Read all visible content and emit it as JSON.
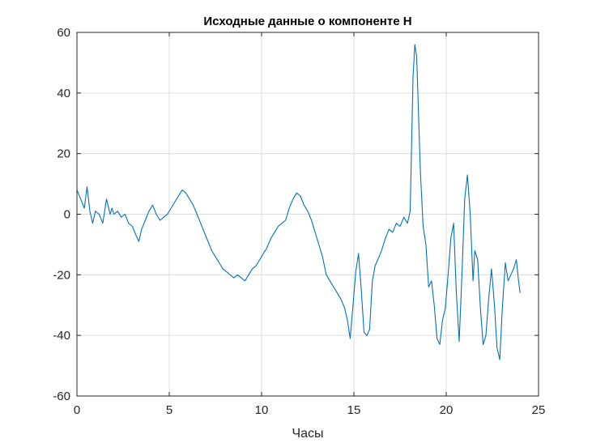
{
  "chart_data": {
    "type": "line",
    "title": "Исходные данные о компоненте H",
    "xlabel": "Часы",
    "ylabel": "",
    "xlim": [
      0,
      25
    ],
    "ylim": [
      -60,
      60
    ],
    "xticks": [
      0,
      5,
      10,
      15,
      20,
      25
    ],
    "yticks": [
      -60,
      -40,
      -20,
      0,
      20,
      40,
      60
    ],
    "xtick_labels": [
      "0",
      "5",
      "10",
      "15",
      "20",
      "25"
    ],
    "ytick_labels": [
      "-60",
      "-40",
      "-20",
      "0",
      "20",
      "40",
      "60"
    ],
    "grid": true,
    "line_color": "#0072BD",
    "series": [
      {
        "x": [
          0,
          0.2,
          0.4,
          0.55,
          0.7,
          0.85,
          1.0,
          1.2,
          1.4,
          1.6,
          1.8,
          1.9,
          2.0,
          2.2,
          2.4,
          2.6,
          2.8,
          3.0,
          3.2,
          3.35,
          3.5,
          3.7,
          3.9,
          4.1,
          4.3,
          4.5,
          4.7,
          4.9,
          5.1,
          5.3,
          5.5,
          5.7,
          5.9,
          6.1,
          6.3,
          6.5,
          6.7,
          6.9,
          7.1,
          7.3,
          7.5,
          7.7,
          7.9,
          8.1,
          8.3,
          8.5,
          8.7,
          8.9,
          9.1,
          9.3,
          9.5,
          9.7,
          9.9,
          10.1,
          10.3,
          10.5,
          10.7,
          10.9,
          11.1,
          11.3,
          11.5,
          11.7,
          11.9,
          12.1,
          12.3,
          12.5,
          12.7,
          12.9,
          13.1,
          13.3,
          13.5,
          13.7,
          13.9,
          14.1,
          14.3,
          14.5,
          14.65,
          14.8,
          14.95,
          15.1,
          15.25,
          15.4,
          15.55,
          15.7,
          15.85,
          16.0,
          16.15,
          16.3,
          16.5,
          16.7,
          16.9,
          17.1,
          17.3,
          17.5,
          17.7,
          17.9,
          18.05,
          18.2,
          18.3,
          18.4,
          18.5,
          18.6,
          18.75,
          18.9,
          19.05,
          19.2,
          19.35,
          19.5,
          19.65,
          19.8,
          19.95,
          20.1,
          20.25,
          20.4,
          20.55,
          20.7,
          20.85,
          21.0,
          21.15,
          21.3,
          21.45,
          21.55,
          21.7,
          21.85,
          22.0,
          22.15,
          22.3,
          22.45,
          22.6,
          22.75,
          22.9,
          23.05,
          23.2,
          23.35,
          23.5,
          23.65,
          23.8,
          23.9,
          24.0
        ],
        "y": [
          8,
          5,
          2,
          9,
          1,
          -3,
          1,
          0,
          -3,
          5,
          0,
          2,
          0,
          1,
          -1,
          0,
          -3,
          -4,
          -7,
          -9,
          -5,
          -2,
          1,
          3,
          0,
          -2,
          -1,
          0,
          2,
          4,
          6,
          8,
          7,
          5,
          3,
          0,
          -3,
          -6,
          -9,
          -12,
          -14,
          -16,
          -18,
          -19,
          -20,
          -21,
          -20,
          -21,
          -22,
          -20,
          -18,
          -17,
          -15,
          -13,
          -11,
          -8,
          -6,
          -4,
          -3,
          -2,
          2,
          5,
          7,
          6,
          3,
          1,
          -2,
          -6,
          -10,
          -14,
          -20,
          -22,
          -24,
          -26,
          -28,
          -31,
          -35,
          -41,
          -30,
          -19,
          -13,
          -25,
          -39,
          -40,
          -38,
          -22,
          -17,
          -15,
          -12,
          -8,
          -5,
          -6,
          -3,
          -4,
          -1,
          -3,
          1,
          45,
          56,
          52,
          33,
          14,
          -4,
          -10,
          -24,
          -22,
          -30,
          -41,
          -43,
          -35,
          -31,
          -20,
          -8,
          -3,
          -26,
          -42,
          -20,
          5,
          13,
          0,
          -22,
          -12,
          -15,
          -31,
          -43,
          -40,
          -28,
          -18,
          -29,
          -44,
          -48,
          -30,
          -16,
          -22,
          -20,
          -18,
          -15,
          -21,
          -26
        ],
        "approximate": true
      }
    ]
  }
}
